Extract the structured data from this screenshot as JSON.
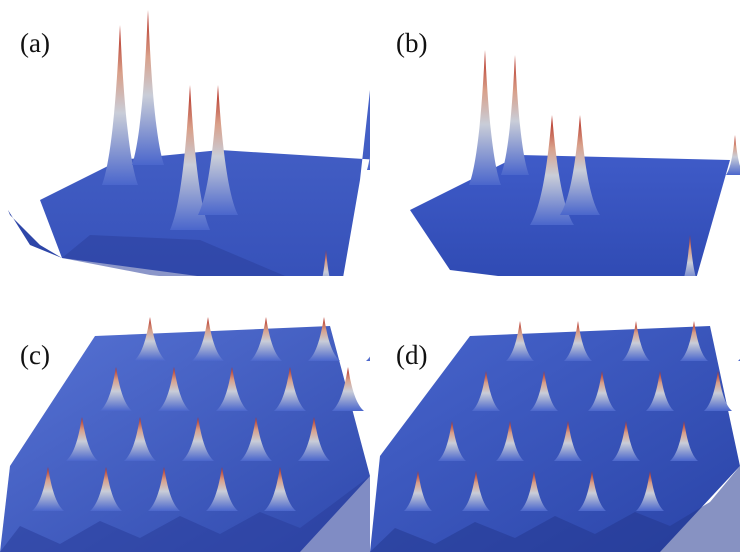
{
  "figure": {
    "panels": [
      {
        "id": "a",
        "label": "(a)"
      },
      {
        "id": "b",
        "label": "(b)"
      },
      {
        "id": "c",
        "label": "(c)"
      },
      {
        "id": "d",
        "label": "(d)"
      }
    ]
  },
  "colors": {
    "surface_base": "#3a57c4",
    "surface_dark": "#22338a",
    "surface_light": "#6b86d8",
    "peak_mid": "#d9d2cc",
    "peak_top": "#b2261b",
    "background": "#ffffff"
  }
}
